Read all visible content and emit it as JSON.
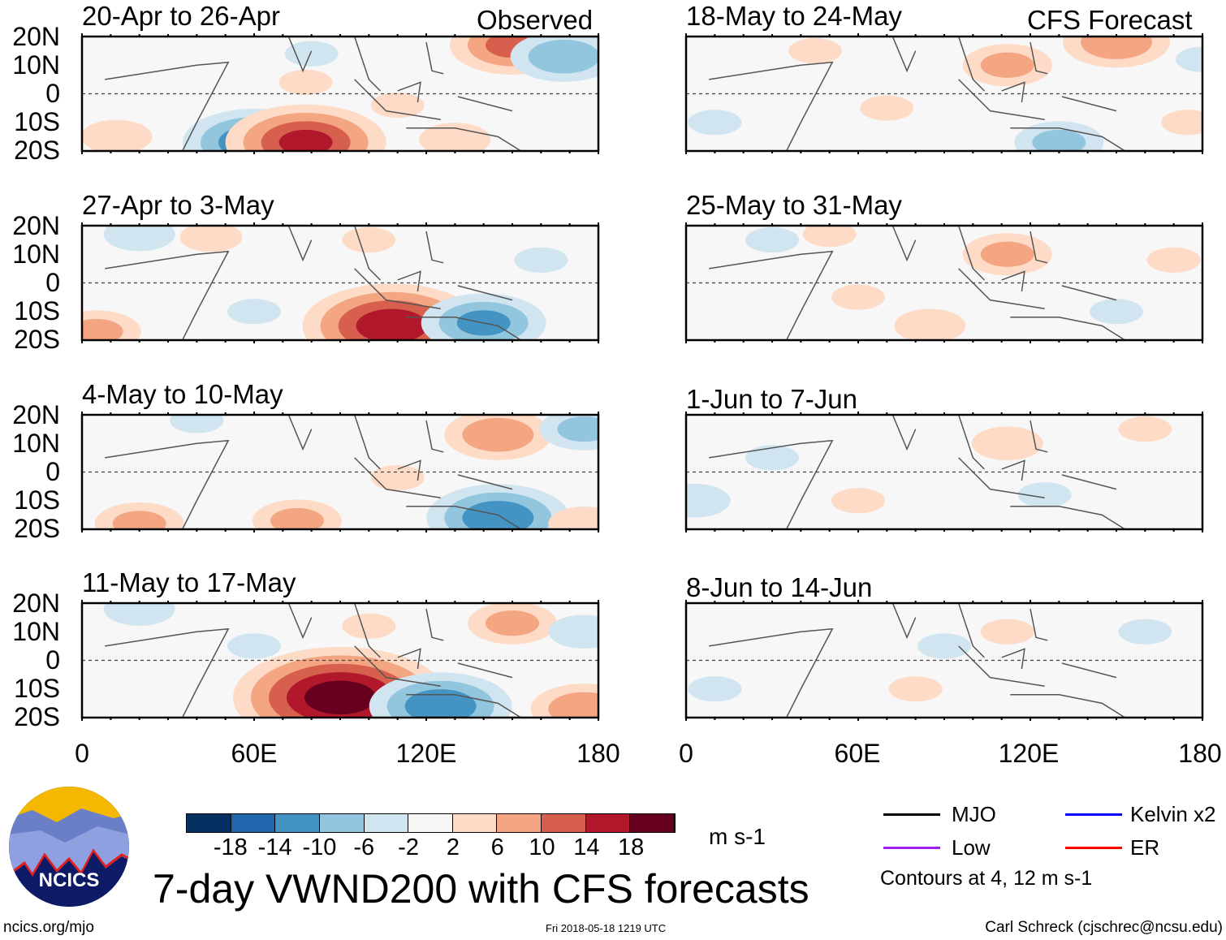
{
  "header": {
    "observed_label": "Observed",
    "forecast_label": "CFS Forecast"
  },
  "lat_labels": [
    "20N",
    "10N",
    "0",
    "10S",
    "20S"
  ],
  "lon_labels": [
    "0",
    "60E",
    "120E",
    "180"
  ],
  "panels": [
    {
      "title": "20-Apr to 26-Apr",
      "column": "observed",
      "features": [
        [
          150,
          17,
          12
        ],
        [
          168,
          13,
          -10
        ],
        [
          60,
          -17,
          -14
        ],
        [
          78,
          -17,
          16
        ],
        [
          130,
          -16,
          6
        ],
        [
          12,
          -15,
          6
        ],
        [
          78,
          4,
          4
        ],
        [
          110,
          -4,
          4
        ],
        [
          80,
          14,
          -4
        ]
      ]
    },
    {
      "title": "27-Apr to 3-May",
      "column": "observed",
      "features": [
        [
          108,
          -15,
          18
        ],
        [
          140,
          -14,
          -12
        ],
        [
          20,
          17,
          -6
        ],
        [
          45,
          16,
          5
        ],
        [
          5,
          -17,
          8
        ],
        [
          100,
          15,
          4
        ],
        [
          160,
          8,
          -4
        ],
        [
          60,
          -10,
          -4
        ]
      ]
    },
    {
      "title": "4-May to 10-May",
      "column": "observed",
      "features": [
        [
          145,
          13,
          10
        ],
        [
          145,
          -16,
          -14
        ],
        [
          75,
          -17,
          8
        ],
        [
          20,
          -18,
          8
        ],
        [
          175,
          -18,
          6
        ],
        [
          175,
          15,
          -8
        ],
        [
          110,
          -2,
          4
        ],
        [
          40,
          18,
          -4
        ]
      ]
    },
    {
      "title": "11-May to 17-May",
      "column": "observed",
      "features": [
        [
          90,
          -13,
          22
        ],
        [
          125,
          -16,
          -14
        ],
        [
          150,
          13,
          8
        ],
        [
          20,
          18,
          -6
        ],
        [
          175,
          -17,
          10
        ],
        [
          60,
          5,
          -4
        ],
        [
          100,
          12,
          4
        ],
        [
          175,
          10,
          -6
        ]
      ]
    },
    {
      "title": "18-May to 24-May",
      "column": "forecast",
      "features": [
        [
          112,
          10,
          8
        ],
        [
          150,
          18,
          10
        ],
        [
          130,
          -17,
          -8
        ],
        [
          10,
          -10,
          -4
        ],
        [
          45,
          15,
          4
        ],
        [
          70,
          -5,
          4
        ],
        [
          175,
          -10,
          4
        ],
        [
          180,
          12,
          -4
        ]
      ]
    },
    {
      "title": "25-May to 31-May",
      "column": "forecast",
      "features": [
        [
          112,
          10,
          8
        ],
        [
          85,
          -15,
          6
        ],
        [
          50,
          17,
          4
        ],
        [
          30,
          15,
          -4
        ],
        [
          60,
          -5,
          4
        ],
        [
          150,
          -10,
          -4
        ],
        [
          170,
          8,
          4
        ]
      ]
    },
    {
      "title": "1-Jun to 7-Jun",
      "column": "forecast",
      "features": [
        [
          112,
          10,
          6
        ],
        [
          3,
          -10,
          -6
        ],
        [
          60,
          -10,
          4
        ],
        [
          30,
          5,
          -4
        ],
        [
          160,
          15,
          4
        ],
        [
          125,
          -8,
          -4
        ]
      ]
    },
    {
      "title": "8-Jun to 14-Jun",
      "column": "forecast",
      "features": [
        [
          112,
          10,
          4
        ],
        [
          90,
          5,
          -4
        ],
        [
          10,
          -10,
          -4
        ],
        [
          160,
          10,
          -4
        ],
        [
          80,
          -10,
          4
        ]
      ]
    }
  ],
  "colorbar": {
    "colors": [
      "#053061",
      "#2166ac",
      "#4393c3",
      "#92c5de",
      "#d1e5f0",
      "#f7f7f7",
      "#fddbc7",
      "#f4a582",
      "#d6604d",
      "#b2182b",
      "#67001f"
    ],
    "tick_labels": [
      "-18",
      "-14",
      "-10",
      "-6",
      "-2",
      "2",
      "6",
      "10",
      "14",
      "18"
    ],
    "units": "m s-1"
  },
  "legend": {
    "items": [
      {
        "label": "MJO",
        "color": "#000000"
      },
      {
        "label": "Kelvin x2",
        "color": "#0000ff"
      },
      {
        "label": "Low",
        "color": "#a020f0"
      },
      {
        "label": "ER",
        "color": "#ff0000"
      }
    ],
    "note": "Contours at 4, 12 m s-1"
  },
  "title": "7-day VWND200 with CFS forecasts",
  "logo_text": "NCICS",
  "footer": {
    "left": "ncics.org/mjo",
    "center": "Fri 2018-05-18 1219 UTC",
    "right": "Carl Schreck (cjschrec@ncsu.edu)"
  }
}
